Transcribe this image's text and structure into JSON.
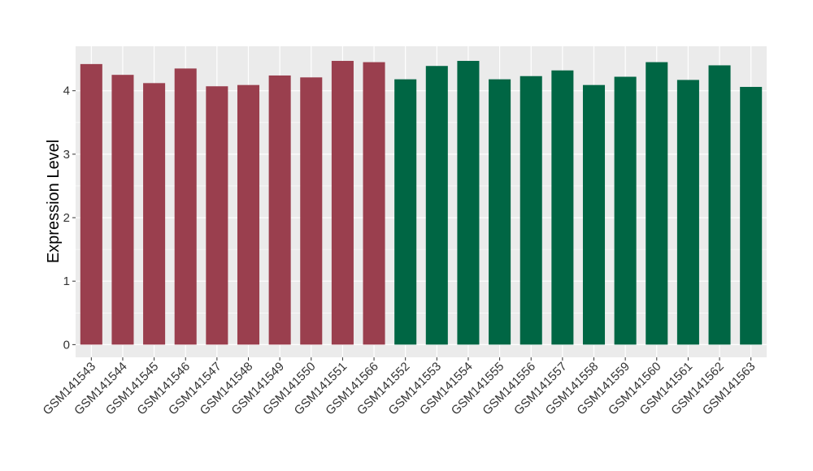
{
  "chart_data": {
    "type": "bar",
    "title": "",
    "xlabel": "",
    "ylabel": "Expression Level",
    "ylim": [
      -0.2,
      4.7
    ],
    "yticks": [
      0,
      1,
      2,
      3,
      4
    ],
    "grid": true,
    "categories": [
      "GSM141543",
      "GSM141544",
      "GSM141545",
      "GSM141546",
      "GSM141547",
      "GSM141548",
      "GSM141549",
      "GSM141550",
      "GSM141551",
      "GSM141566",
      "GSM141552",
      "GSM141553",
      "GSM141554",
      "GSM141555",
      "GSM141556",
      "GSM141557",
      "GSM141558",
      "GSM141559",
      "GSM141560",
      "GSM141561",
      "GSM141562",
      "GSM141563"
    ],
    "values": [
      4.42,
      4.25,
      4.12,
      4.35,
      4.07,
      4.09,
      4.24,
      4.21,
      4.47,
      4.45,
      4.18,
      4.39,
      4.47,
      4.18,
      4.23,
      4.32,
      4.09,
      4.22,
      4.45,
      4.17,
      4.4,
      4.06
    ],
    "group_colors": [
      "#9a3f4e",
      "#9a3f4e",
      "#9a3f4e",
      "#9a3f4e",
      "#9a3f4e",
      "#9a3f4e",
      "#9a3f4e",
      "#9a3f4e",
      "#9a3f4e",
      "#9a3f4e",
      "#006644",
      "#006644",
      "#006644",
      "#006644",
      "#006644",
      "#006644",
      "#006644",
      "#006644",
      "#006644",
      "#006644",
      "#006644",
      "#006644"
    ],
    "panel_background": "#ebebeb",
    "grid_color": "#ffffff"
  }
}
